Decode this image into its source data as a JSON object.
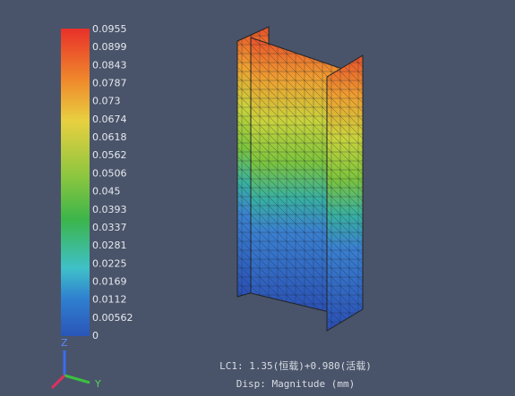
{
  "legend": {
    "labels": [
      "0.0955",
      "0.0899",
      "0.0843",
      "0.0787",
      "0.073",
      "0.0674",
      "0.0618",
      "0.0562",
      "0.0506",
      "0.045",
      "0.0393",
      "0.0337",
      "0.0281",
      "0.0225",
      "0.0169",
      "0.0112",
      "0.00562",
      "0"
    ]
  },
  "axes": {
    "z": "Z",
    "y": "Y"
  },
  "caption": {
    "load_case": "LC1: 1.35(恒载)+0.980(活载)",
    "result": "Disp: Magnitude (mm)"
  }
}
